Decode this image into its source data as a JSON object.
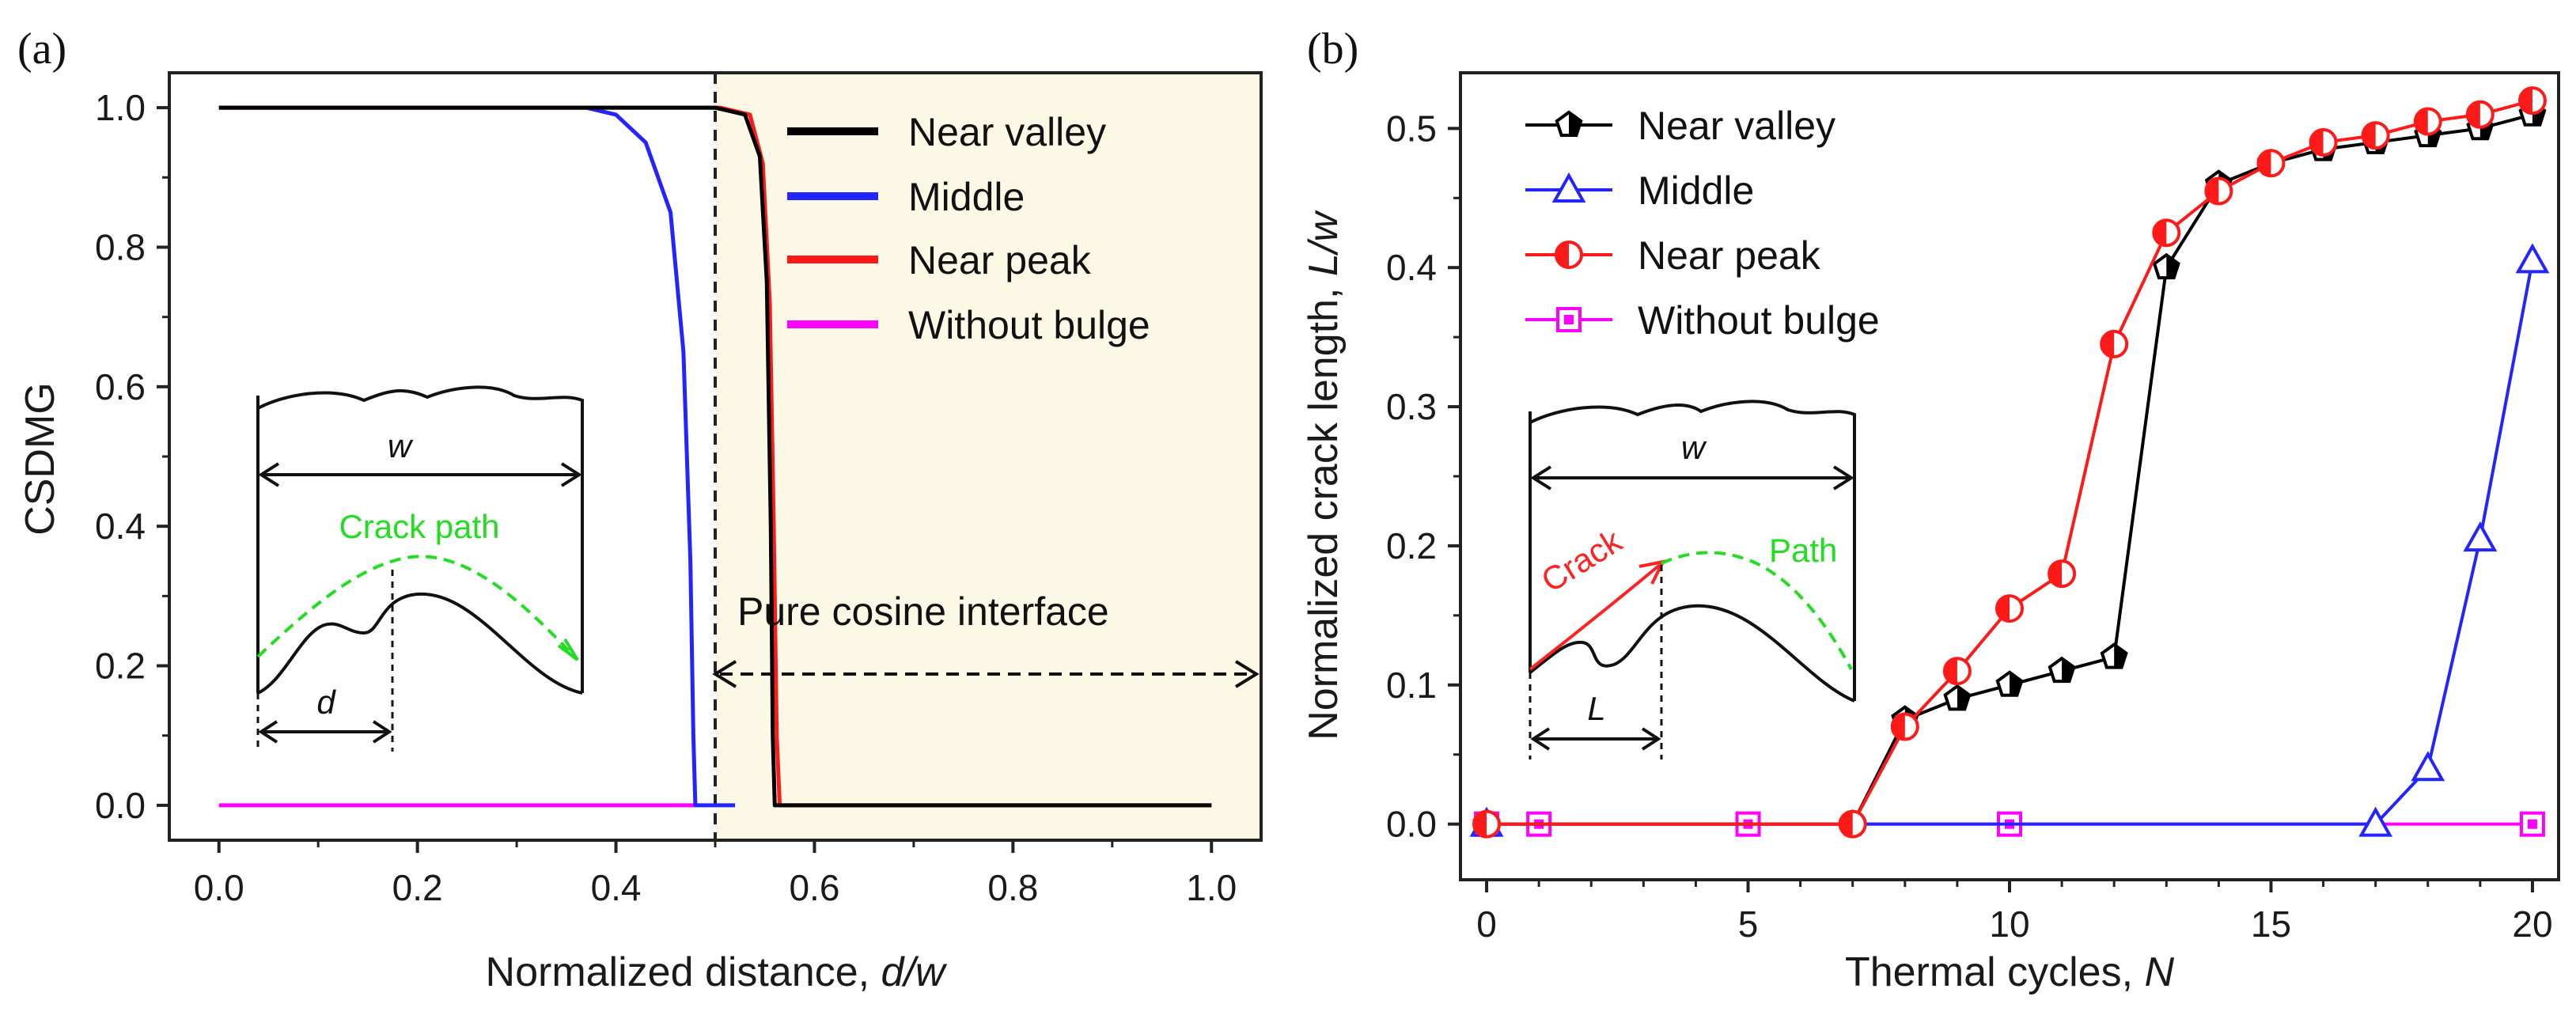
{
  "chart_data": [
    {
      "panel": "(a)",
      "type": "line",
      "title": "",
      "xlabel": "Normalized distance, ",
      "xlabel_italic": "d/w",
      "ylabel": "CSDMG",
      "xlim": [
        -0.05,
        1.05
      ],
      "ylim": [
        -0.05,
        1.05
      ],
      "xticks": [
        0.0,
        0.2,
        0.4,
        0.6,
        0.8,
        1.0
      ],
      "xtick_labels": [
        "0.0",
        "0.2",
        "0.4",
        "0.6",
        "0.8",
        "1.0"
      ],
      "yticks": [
        0.0,
        0.2,
        0.4,
        0.6,
        0.8,
        1.0
      ],
      "ytick_labels": [
        "0.0",
        "0.2",
        "0.4",
        "0.6",
        "0.8",
        "1.0"
      ],
      "legend_position": "top-right",
      "series": [
        {
          "name": "Near valley",
          "color": "#000000",
          "x": [
            0.0,
            0.5,
            0.53,
            0.545,
            0.552,
            0.556,
            0.558,
            0.56,
            1.0
          ],
          "y": [
            1.0,
            1.0,
            0.99,
            0.93,
            0.75,
            0.4,
            0.1,
            0.0,
            0.0
          ]
        },
        {
          "name": "Middle",
          "color": "#2424ff",
          "x": [
            0.0,
            0.37,
            0.4,
            0.43,
            0.455,
            0.468,
            0.475,
            0.478,
            0.48,
            0.52
          ],
          "y": [
            1.0,
            1.0,
            0.99,
            0.95,
            0.85,
            0.65,
            0.35,
            0.1,
            0.0,
            0.0
          ]
        },
        {
          "name": "Near peak",
          "color": "#ff1a1a",
          "x": [
            0.0,
            0.505,
            0.535,
            0.548,
            0.555,
            0.559,
            0.562,
            0.565,
            1.0
          ],
          "y": [
            1.0,
            1.0,
            0.99,
            0.92,
            0.72,
            0.4,
            0.1,
            0.0,
            0.0
          ]
        },
        {
          "name": "Without bulge",
          "color": "#ff00ff",
          "x": [
            0.0,
            0.48
          ],
          "y": [
            0.0,
            0.0
          ]
        }
      ],
      "shaded_region": {
        "x_from": 0.5,
        "x_to": 1.05,
        "color": "#fbf8e6"
      },
      "vline_x": 0.5,
      "annotation": "Pure cosine interface",
      "inset": {
        "width_label": "w",
        "path_label": "Crack path",
        "distance_label": "d"
      }
    },
    {
      "panel": "(b)",
      "type": "line",
      "title": "",
      "xlabel": "Thermal cycles, ",
      "xlabel_italic": "N",
      "ylabel": "Normalized crack length, ",
      "ylabel_italic": "L/w",
      "xlim": [
        -0.5,
        20.5
      ],
      "ylim": [
        -0.04,
        0.54
      ],
      "xticks": [
        0,
        5,
        10,
        15,
        20
      ],
      "xtick_labels": [
        "0",
        "5",
        "10",
        "15",
        "20"
      ],
      "yticks": [
        0.0,
        0.1,
        0.2,
        0.3,
        0.4,
        0.5
      ],
      "ytick_labels": [
        "0.0",
        "0.1",
        "0.2",
        "0.3",
        "0.4",
        "0.5"
      ],
      "legend_position": "top-left",
      "series": [
        {
          "name": "Near valley",
          "color": "#000000",
          "marker": "pentagon",
          "x": [
            0,
            7,
            8,
            9,
            10,
            11,
            12,
            13,
            14,
            15,
            16,
            17,
            18,
            19,
            20
          ],
          "y": [
            0.0,
            0.0,
            0.075,
            0.09,
            0.1,
            0.11,
            0.12,
            0.4,
            0.46,
            0.475,
            0.485,
            0.49,
            0.495,
            0.5,
            0.51
          ]
        },
        {
          "name": "Middle",
          "color": "#2424ff",
          "marker": "triangle",
          "x": [
            0,
            17,
            18,
            19,
            20
          ],
          "y": [
            0.0,
            0.0,
            0.04,
            0.205,
            0.405
          ]
        },
        {
          "name": "Near peak",
          "color": "#ff1a1a",
          "marker": "halfcircle",
          "x": [
            0,
            7,
            8,
            9,
            10,
            11,
            12,
            13,
            14,
            15,
            16,
            17,
            18,
            19,
            20
          ],
          "y": [
            0.0,
            0.0,
            0.07,
            0.11,
            0.155,
            0.18,
            0.345,
            0.425,
            0.455,
            0.475,
            0.49,
            0.495,
            0.505,
            0.51,
            0.52
          ]
        },
        {
          "name": "Without bulge",
          "color": "#ff00ff",
          "marker": "square",
          "x": [
            0,
            1,
            5,
            10,
            20
          ],
          "y": [
            0.0,
            0.0,
            0.0,
            0.0,
            0.0
          ]
        }
      ],
      "inset": {
        "width_label": "w",
        "crack_label": "Crack",
        "path_label": "Path",
        "length_label": "L"
      }
    }
  ]
}
